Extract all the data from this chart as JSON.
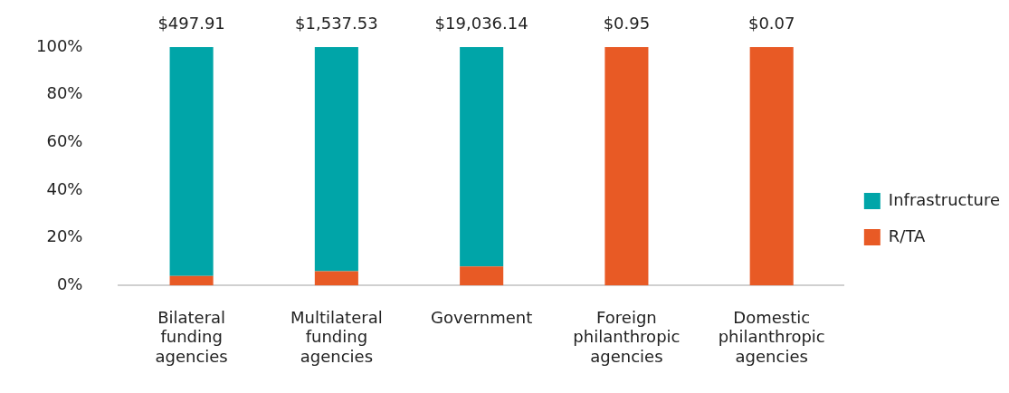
{
  "chart_data": {
    "type": "bar",
    "stacked": true,
    "categories": [
      "Bilateral funding agencies",
      "Multilateral funding agencies",
      "Government",
      "Foreign philanthropic agencies",
      "Domestic philanthropic agencies"
    ],
    "series": [
      {
        "name": "R/TA",
        "color": "#e85a25",
        "values": [
          4,
          6,
          8,
          100,
          100
        ]
      },
      {
        "name": "Infrastructure",
        "color": "#00a5a8",
        "values": [
          96,
          94,
          92,
          0,
          0
        ]
      }
    ],
    "annotations": [
      {
        "text": "$497.91",
        "x": "Bilateral funding agencies",
        "y": 100
      },
      {
        "text": "$1,537.53",
        "x": "Multilateral funding agencies",
        "y": 100
      },
      {
        "text": "$19,036.14",
        "x": "Government",
        "y": 100
      },
      {
        "text": "$0.95",
        "x": "Foreign philanthropic agencies",
        "y": 100
      },
      {
        "text": "$0.07",
        "x": "Domestic philanthropic agencies",
        "y": 100
      }
    ],
    "ylim": [
      0,
      100
    ],
    "yticks": [
      {
        "value": 0,
        "label": "0%"
      },
      {
        "value": 20,
        "label": "20%"
      },
      {
        "value": 40,
        "label": "40%"
      },
      {
        "value": 60,
        "label": "60%"
      },
      {
        "value": 80,
        "label": "80%"
      },
      {
        "value": 100,
        "label": "100%"
      }
    ],
    "grid": false,
    "legend": "right"
  }
}
